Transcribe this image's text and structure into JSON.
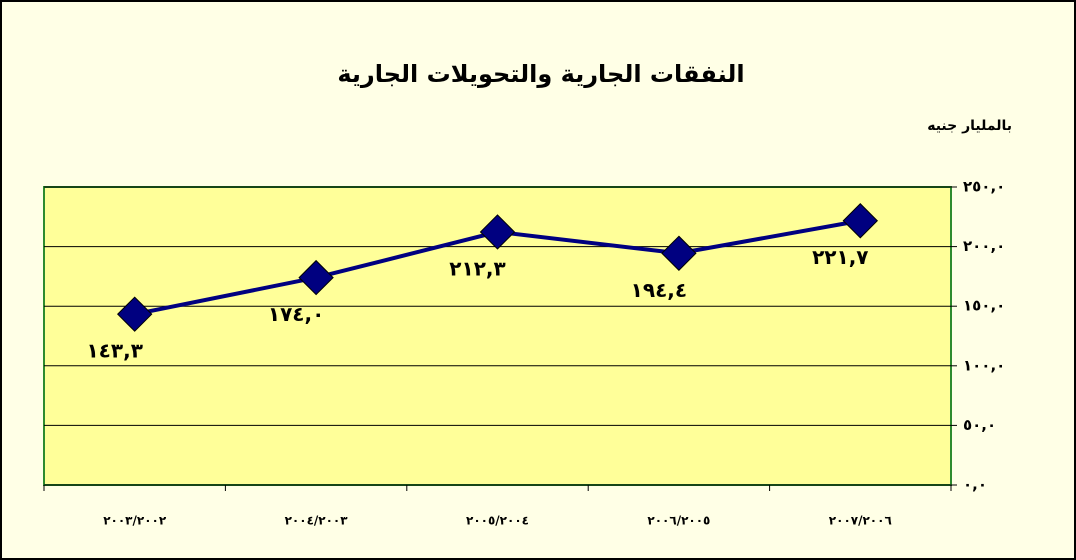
{
  "chart_data": {
    "type": "line",
    "title": "النفقات الجارية والتحويلات الجارية",
    "y_label": "بالمليار جنيه",
    "categories": [
      "٢٠٠٣/٢٠٠٢",
      "٢٠٠٤/٢٠٠٣",
      "٢٠٠٥/٢٠٠٤",
      "٢٠٠٦/٢٠٠٥",
      "٢٠٠٧/٢٠٠٦"
    ],
    "series": [
      {
        "color": "#000080",
        "values": [
          143.3,
          174.0,
          212.3,
          194.4,
          221.7
        ],
        "value_labels": [
          "١٤٣,٣",
          "١٧٤,٠",
          "٢١٢,٣",
          "١٩٤,٤",
          "٢٢١,٧"
        ]
      }
    ],
    "ylim": [
      0,
      250
    ],
    "yticks": [
      {
        "value": 0,
        "label": "٠,٠"
      },
      {
        "value": 50,
        "label": "٥٠,٠"
      },
      {
        "value": 100,
        "label": "١٠٠,٠"
      },
      {
        "value": 150,
        "label": "١٥٠,٠"
      },
      {
        "value": 200,
        "label": "٢٠٠,٠"
      },
      {
        "value": 250,
        "label": "٢٥٠,٠"
      }
    ],
    "grid": true
  }
}
